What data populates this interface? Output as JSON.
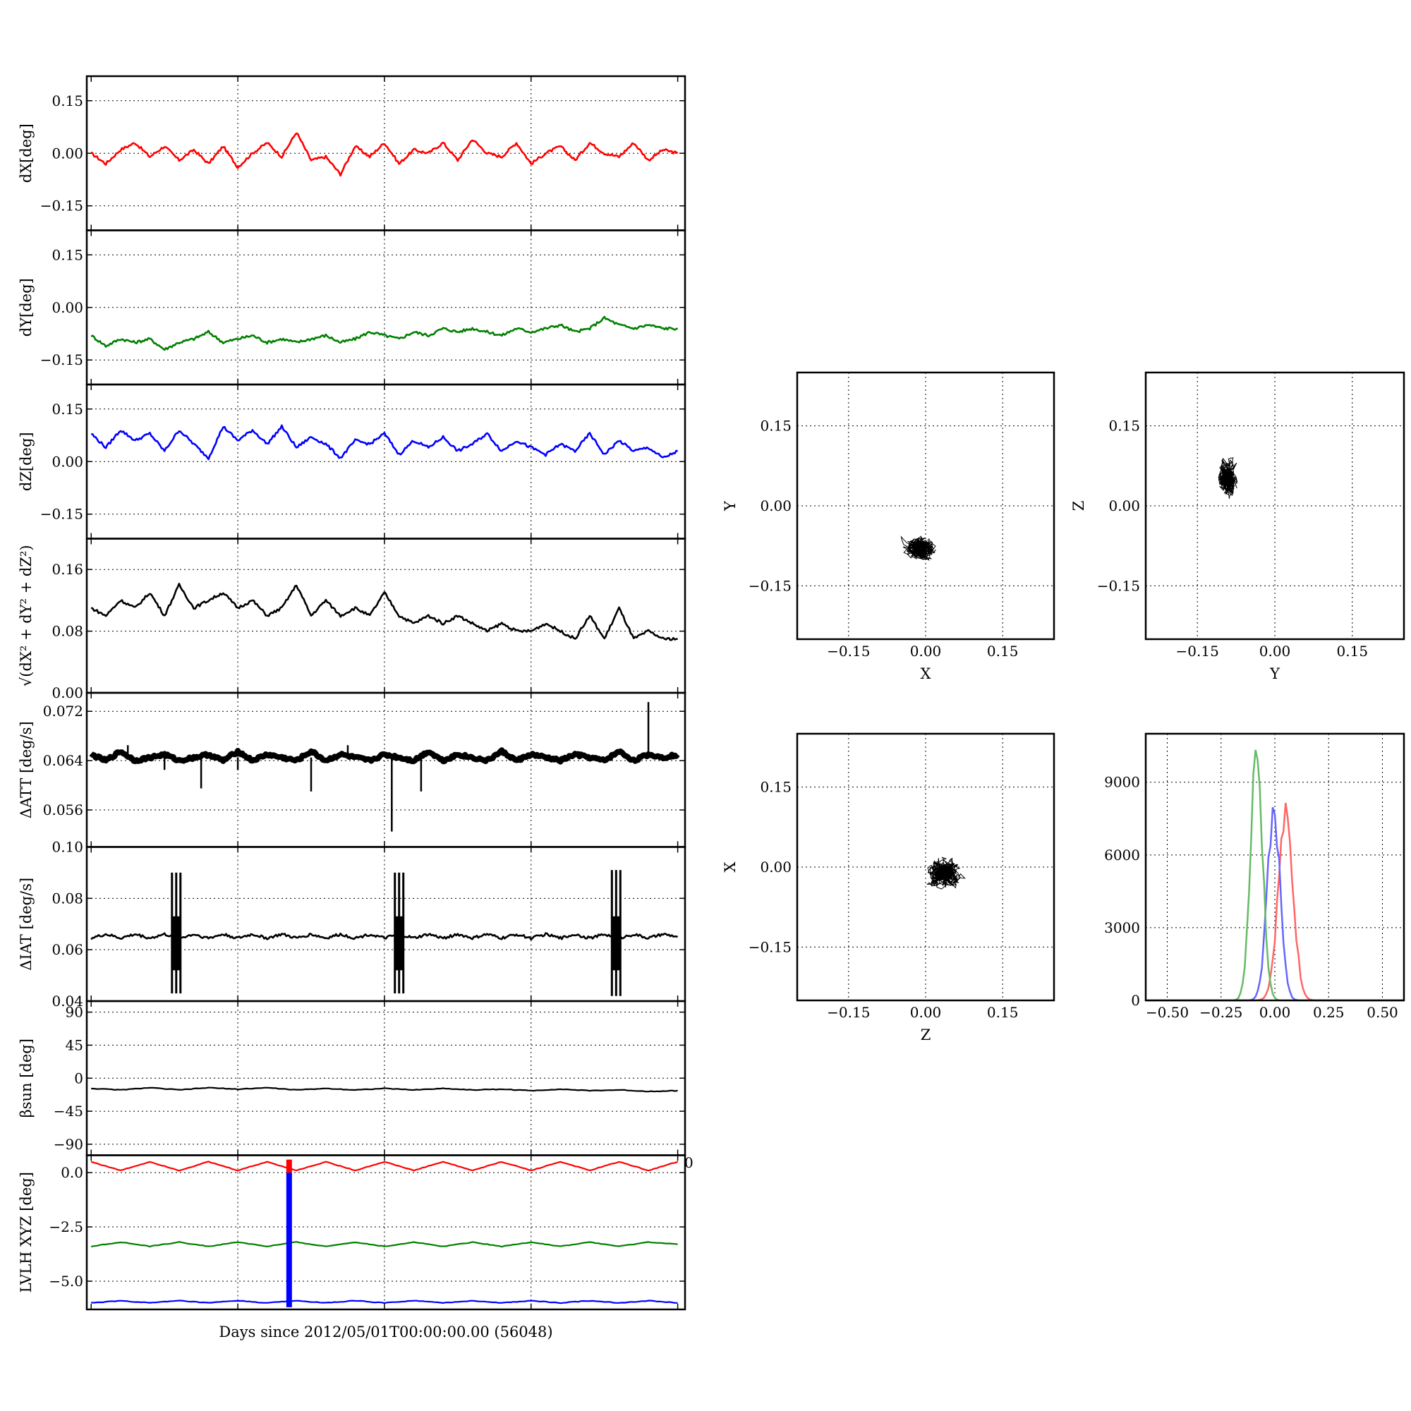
{
  "figure": {
    "xlabel": "Days since 2012/05/01T00:00:00.00 (56048)",
    "stray_tick": "0"
  },
  "chart_data": [
    {
      "id": "dX",
      "type": "line",
      "ylabel": "dX[deg]",
      "ylim": [
        -0.22,
        0.22
      ],
      "yticks": [
        0.15,
        0.0,
        -0.15
      ],
      "ytick_labels": [
        "0.15",
        "0.00",
        "−0.15"
      ],
      "x": [
        0,
        1,
        2,
        3,
        4,
        5,
        6,
        7,
        8,
        9,
        10,
        11,
        12,
        13,
        14,
        15,
        16,
        17,
        18,
        19,
        20,
        21,
        22,
        23,
        24,
        25,
        26,
        27,
        28,
        29,
        30,
        31,
        32,
        33,
        34,
        35,
        36,
        37,
        38,
        39,
        40
      ],
      "series": [
        {
          "color": "#ff0000",
          "values": [
            0.0,
            -0.03,
            0.01,
            0.03,
            -0.01,
            0.02,
            -0.02,
            0.01,
            -0.03,
            0.02,
            -0.04,
            0.0,
            0.03,
            -0.01,
            0.06,
            -0.02,
            -0.01,
            -0.06,
            0.02,
            -0.01,
            0.03,
            -0.03,
            0.01,
            0.0,
            0.03,
            -0.02,
            0.04,
            0.0,
            -0.01,
            0.03,
            -0.03,
            0.0,
            0.02,
            -0.02,
            0.03,
            0.0,
            -0.01,
            0.03,
            -0.02,
            0.01,
            0.0
          ]
        }
      ]
    },
    {
      "id": "dY",
      "type": "line",
      "ylabel": "dY[deg]",
      "ylim": [
        -0.22,
        0.22
      ],
      "yticks": [
        0.15,
        0.0,
        -0.15
      ],
      "ytick_labels": [
        "0.15",
        "0.00",
        "−0.15"
      ],
      "x": [
        0,
        1,
        2,
        3,
        4,
        5,
        6,
        7,
        8,
        9,
        10,
        11,
        12,
        13,
        14,
        15,
        16,
        17,
        18,
        19,
        20,
        21,
        22,
        23,
        24,
        25,
        26,
        27,
        28,
        29,
        30,
        31,
        32,
        33,
        34,
        35,
        36,
        37,
        38,
        39,
        40
      ],
      "series": [
        {
          "color": "#008000",
          "values": [
            -0.08,
            -0.11,
            -0.09,
            -0.1,
            -0.09,
            -0.12,
            -0.1,
            -0.09,
            -0.07,
            -0.1,
            -0.09,
            -0.08,
            -0.1,
            -0.09,
            -0.1,
            -0.09,
            -0.08,
            -0.1,
            -0.09,
            -0.07,
            -0.08,
            -0.09,
            -0.07,
            -0.08,
            -0.06,
            -0.07,
            -0.06,
            -0.07,
            -0.08,
            -0.06,
            -0.07,
            -0.06,
            -0.05,
            -0.07,
            -0.06,
            -0.03,
            -0.05,
            -0.06,
            -0.05,
            -0.06,
            -0.06
          ]
        }
      ]
    },
    {
      "id": "dZ",
      "type": "line",
      "ylabel": "dZ[deg]",
      "ylim": [
        -0.22,
        0.22
      ],
      "yticks": [
        0.15,
        0.0,
        -0.15
      ],
      "ytick_labels": [
        "0.15",
        "0.00",
        "−0.15"
      ],
      "x": [
        0,
        1,
        2,
        3,
        4,
        5,
        6,
        7,
        8,
        9,
        10,
        11,
        12,
        13,
        14,
        15,
        16,
        17,
        18,
        19,
        20,
        21,
        22,
        23,
        24,
        25,
        26,
        27,
        28,
        29,
        30,
        31,
        32,
        33,
        34,
        35,
        36,
        37,
        38,
        39,
        40
      ],
      "series": [
        {
          "color": "#0000ff",
          "values": [
            0.08,
            0.04,
            0.09,
            0.06,
            0.08,
            0.03,
            0.09,
            0.05,
            0.01,
            0.1,
            0.06,
            0.09,
            0.05,
            0.1,
            0.04,
            0.07,
            0.05,
            0.01,
            0.06,
            0.05,
            0.08,
            0.02,
            0.06,
            0.04,
            0.07,
            0.03,
            0.05,
            0.08,
            0.03,
            0.06,
            0.04,
            0.02,
            0.05,
            0.03,
            0.08,
            0.02,
            0.06,
            0.03,
            0.04,
            0.01,
            0.03
          ]
        }
      ]
    },
    {
      "id": "dR",
      "type": "line",
      "ylabel": "√(dX² + dY² + dZ²)",
      "ylim": [
        0.0,
        0.2
      ],
      "yticks": [
        0.16,
        0.08,
        0.0
      ],
      "ytick_labels": [
        "0.16",
        "0.08",
        "0.00"
      ],
      "x": [
        0,
        1,
        2,
        3,
        4,
        5,
        6,
        7,
        8,
        9,
        10,
        11,
        12,
        13,
        14,
        15,
        16,
        17,
        18,
        19,
        20,
        21,
        22,
        23,
        24,
        25,
        26,
        27,
        28,
        29,
        30,
        31,
        32,
        33,
        34,
        35,
        36,
        37,
        38,
        39,
        40
      ],
      "series": [
        {
          "color": "#000000",
          "values": [
            0.11,
            0.1,
            0.12,
            0.11,
            0.13,
            0.1,
            0.14,
            0.11,
            0.12,
            0.13,
            0.11,
            0.12,
            0.1,
            0.11,
            0.14,
            0.1,
            0.12,
            0.1,
            0.11,
            0.1,
            0.13,
            0.1,
            0.09,
            0.1,
            0.09,
            0.1,
            0.09,
            0.08,
            0.09,
            0.08,
            0.08,
            0.09,
            0.08,
            0.07,
            0.1,
            0.07,
            0.11,
            0.07,
            0.08,
            0.07,
            0.07
          ]
        }
      ]
    },
    {
      "id": "dATT",
      "type": "line",
      "ylabel": "ΔATT [deg/s]",
      "ylim": [
        0.05,
        0.075
      ],
      "yticks": [
        0.072,
        0.064,
        0.056
      ],
      "ytick_labels": [
        "0.072",
        "0.064",
        "0.056"
      ],
      "x": [
        0,
        1,
        2,
        3,
        4,
        5,
        6,
        7,
        8,
        9,
        10,
        11,
        12,
        13,
        14,
        15,
        16,
        17,
        18,
        19,
        20,
        21,
        22,
        23,
        24,
        25,
        26,
        27,
        28,
        29,
        30,
        31,
        32,
        33,
        34,
        35,
        36,
        37,
        38,
        39,
        40
      ],
      "series": [
        {
          "color": "#000000",
          "values": [
            0.065,
            0.064,
            0.0655,
            0.064,
            0.0645,
            0.065,
            0.064,
            0.0645,
            0.065,
            0.064,
            0.0655,
            0.064,
            0.065,
            0.0645,
            0.064,
            0.0655,
            0.064,
            0.065,
            0.0645,
            0.064,
            0.065,
            0.0645,
            0.064,
            0.0655,
            0.064,
            0.065,
            0.0645,
            0.064,
            0.0655,
            0.064,
            0.065,
            0.0645,
            0.064,
            0.065,
            0.0645,
            0.064,
            0.0655,
            0.064,
            0.065,
            0.0645,
            0.065
          ]
        }
      ],
      "spikes": [
        [
          2.5,
          0.0665
        ],
        [
          5,
          0.0625
        ],
        [
          7.5,
          0.0595
        ],
        [
          10,
          0.0625
        ],
        [
          15,
          0.059
        ],
        [
          17.5,
          0.0665
        ],
        [
          20.5,
          0.0525
        ],
        [
          22.5,
          0.059
        ],
        [
          38,
          0.0735
        ]
      ]
    },
    {
      "id": "dIAT",
      "type": "line",
      "ylabel": "ΔIAT [deg/s]",
      "ylim": [
        0.04,
        0.1
      ],
      "yticks": [
        0.1,
        0.08,
        0.06,
        0.04
      ],
      "ytick_labels": [
        "0.10",
        "0.08",
        "0.06",
        "0.04"
      ],
      "x": [
        0,
        1,
        2,
        3,
        4,
        5,
        6,
        7,
        8,
        9,
        10,
        11,
        12,
        13,
        14,
        15,
        16,
        17,
        18,
        19,
        20,
        21,
        22,
        23,
        24,
        25,
        26,
        27,
        28,
        29,
        30,
        31,
        32,
        33,
        34,
        35,
        36,
        37,
        38,
        39,
        40
      ],
      "series": [
        {
          "color": "#000000",
          "values": [
            0.0645,
            0.066,
            0.0645,
            0.066,
            0.0645,
            0.066,
            0.0645,
            0.066,
            0.0645,
            0.066,
            0.0645,
            0.066,
            0.0645,
            0.066,
            0.0645,
            0.066,
            0.0645,
            0.066,
            0.0645,
            0.066,
            0.0645,
            0.066,
            0.0645,
            0.066,
            0.0645,
            0.066,
            0.0645,
            0.066,
            0.0645,
            0.066,
            0.0645,
            0.066,
            0.0645,
            0.066,
            0.0645,
            0.066,
            0.0645,
            0.066,
            0.0645,
            0.066,
            0.065
          ]
        }
      ],
      "bursts": [
        {
          "x": 5.8,
          "ymin": 0.043,
          "ymax": 0.09
        },
        {
          "x": 21,
          "ymin": 0.043,
          "ymax": 0.09
        },
        {
          "x": 35.8,
          "ymin": 0.042,
          "ymax": 0.091
        }
      ]
    },
    {
      "id": "beta",
      "type": "line",
      "ylabel": "βsun [deg]",
      "ylim": [
        -105,
        105
      ],
      "yticks": [
        90,
        45,
        0,
        -45,
        -90
      ],
      "ytick_labels": [
        "90",
        "45",
        "0",
        "−45",
        "−90"
      ],
      "x": [
        0,
        2,
        4,
        6,
        8,
        10,
        12,
        14,
        16,
        18,
        20,
        22,
        24,
        26,
        28,
        30,
        32,
        34,
        36,
        38,
        40
      ],
      "series": [
        {
          "color": "#000000",
          "values": [
            -14,
            -16,
            -13,
            -16,
            -13,
            -15,
            -13,
            -16,
            -14,
            -16,
            -14,
            -16,
            -14,
            -16,
            -15,
            -17,
            -15,
            -17,
            -16,
            -18,
            -17
          ]
        }
      ]
    },
    {
      "id": "lvlh",
      "type": "line",
      "ylabel": "LVLH XYZ [deg]",
      "ylim": [
        -6.3,
        0.8
      ],
      "yticks": [
        0.0,
        -2.5,
        -5.0
      ],
      "ytick_labels": [
        "0.0",
        "−2.5",
        "−5.0"
      ],
      "x": [
        0,
        2,
        4,
        6,
        8,
        10,
        12,
        14,
        16,
        18,
        20,
        22,
        24,
        26,
        28,
        30,
        32,
        34,
        36,
        38,
        40
      ],
      "series": [
        {
          "color": "#ff0000",
          "values": [
            0.5,
            0.1,
            0.5,
            0.1,
            0.5,
            0.1,
            0.5,
            0.1,
            0.5,
            0.1,
            0.5,
            0.1,
            0.5,
            0.1,
            0.5,
            0.1,
            0.5,
            0.1,
            0.5,
            0.1,
            0.5
          ]
        },
        {
          "color": "#008000",
          "values": [
            -3.4,
            -3.2,
            -3.4,
            -3.2,
            -3.4,
            -3.2,
            -3.4,
            -3.2,
            -3.4,
            -3.2,
            -3.4,
            -3.2,
            -3.4,
            -3.2,
            -3.4,
            -3.2,
            -3.4,
            -3.2,
            -3.4,
            -3.2,
            -3.3
          ]
        },
        {
          "color": "#0000ff",
          "values": [
            -6.0,
            -5.9,
            -6.0,
            -5.9,
            -6.0,
            -5.9,
            -6.0,
            -5.9,
            -6.0,
            -5.9,
            -6.0,
            -5.9,
            -6.0,
            -5.9,
            -6.0,
            -5.9,
            -6.0,
            -5.9,
            -6.0,
            -5.9,
            -6.0
          ]
        }
      ],
      "vbar": {
        "x": 13.5,
        "ymin": -6.2,
        "ymax": 0.0,
        "color": "#0000ff"
      },
      "vbar_red": {
        "x": 13.5,
        "ymin": 0.0,
        "ymax": 0.6,
        "color": "#ff0000"
      }
    },
    {
      "id": "XY",
      "type": "scatter",
      "xlabel": "X",
      "ylabel": "Y",
      "xlim": [
        -0.25,
        0.25
      ],
      "ylim": [
        -0.25,
        0.25
      ],
      "ticks": [
        -0.15,
        0.0,
        0.15
      ],
      "tick_labels": [
        "−0.15",
        "0.00",
        "0.15"
      ],
      "cloud": {
        "cx": -0.01,
        "cy": -0.08,
        "rx": 0.045,
        "ry": 0.035
      }
    },
    {
      "id": "YZ",
      "type": "scatter",
      "xlabel": "Y",
      "ylabel": "Z",
      "xlim": [
        -0.25,
        0.25
      ],
      "ylim": [
        -0.25,
        0.25
      ],
      "ticks": [
        -0.15,
        0.0,
        0.15
      ],
      "tick_labels": [
        "−0.15",
        "0.00",
        "0.15"
      ],
      "cloud": {
        "cx": -0.09,
        "cy": 0.05,
        "rx": 0.028,
        "ry": 0.05
      }
    },
    {
      "id": "ZX",
      "type": "scatter",
      "xlabel": "Z",
      "ylabel": "X",
      "xlim": [
        -0.25,
        0.25
      ],
      "ylim": [
        -0.25,
        0.25
      ],
      "ticks": [
        -0.15,
        0.0,
        0.15
      ],
      "tick_labels": [
        "−0.15",
        "0.00",
        "0.15"
      ],
      "cloud": {
        "cx": 0.04,
        "cy": -0.01,
        "rx": 0.048,
        "ry": 0.045
      }
    },
    {
      "id": "hist",
      "type": "line",
      "xlim": [
        -0.6,
        0.6
      ],
      "ylim": [
        0,
        11000
      ],
      "xticks": [
        -0.5,
        -0.25,
        0.0,
        0.25,
        0.5
      ],
      "xtick_labels": [
        "−0.50",
        "−0.25",
        "0.00",
        "0.25",
        "0.50"
      ],
      "yticks": [
        0,
        3000,
        6000,
        9000
      ],
      "ytick_labels": [
        "0",
        "3000",
        "6000",
        "9000"
      ],
      "series": [
        {
          "color": "#ff6666",
          "center": 0.05,
          "width": 0.035,
          "peak": 7500
        },
        {
          "color": "#6666ff",
          "center": -0.005,
          "width": 0.03,
          "peak": 7900
        },
        {
          "color": "#66bb66",
          "center": -0.085,
          "width": 0.028,
          "peak": 10100
        }
      ]
    }
  ]
}
